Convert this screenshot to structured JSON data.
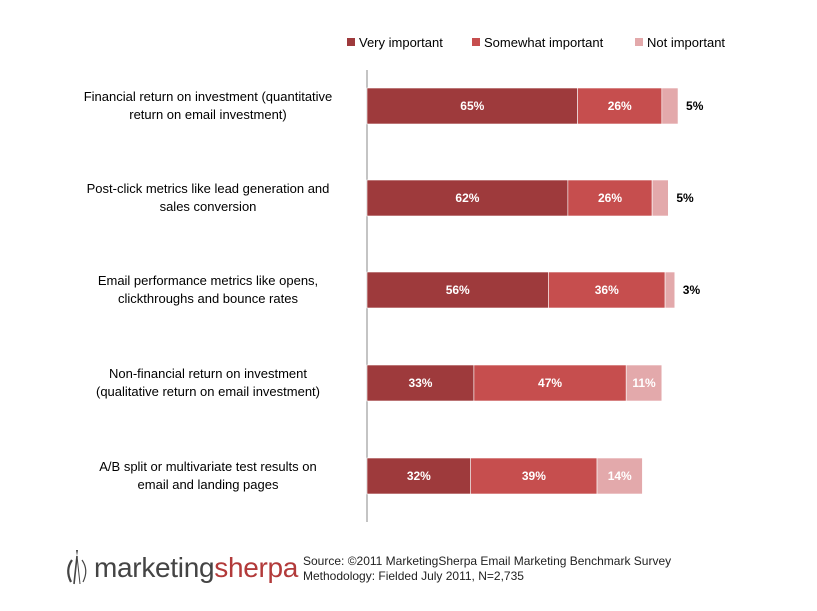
{
  "chart_data": {
    "type": "bar",
    "orientation": "horizontal",
    "stacked": true,
    "categories": [
      [
        "Financial return on investment (quantitative",
        "return on email investment)"
      ],
      [
        "Post-click metrics like lead generation and",
        "sales conversion"
      ],
      [
        "Email performance metrics like opens,",
        "clickthroughs and bounce rates"
      ],
      [
        "Non-financial return on investment",
        "(qualitative return on email investment)"
      ],
      [
        "A/B split or multivariate test results on",
        "email and landing pages"
      ]
    ],
    "series": [
      {
        "name": "Very important",
        "color": "#9e3a3c",
        "values": [
          65,
          62,
          56,
          33,
          32
        ]
      },
      {
        "name": "Somewhat important",
        "color": "#c64e4e",
        "values": [
          26,
          26,
          36,
          47,
          39
        ]
      },
      {
        "name": "Not important",
        "color": "#e3a9ab",
        "values": [
          5,
          5,
          3,
          11,
          14
        ]
      }
    ],
    "value_suffix": "%",
    "legend_position": "top-right",
    "grid": false
  },
  "footer": {
    "logo_part1": "marketing",
    "logo_part2": "sherpa",
    "source_line1": "Source: ©2011 MarketingSherpa Email Marketing Benchmark Survey",
    "source_line2": "Methodology: Fielded July 2011, N=2,735"
  }
}
